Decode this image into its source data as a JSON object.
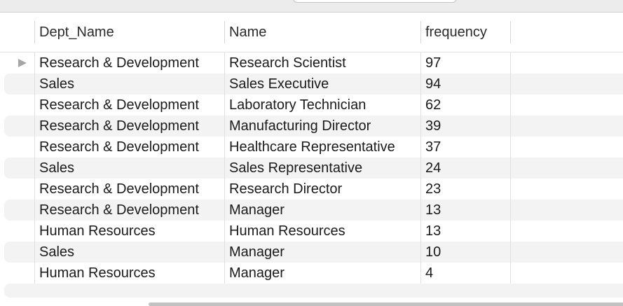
{
  "columns": {
    "dept": "Dept_Name",
    "name": "Name",
    "frequency": "frequency"
  },
  "rows": [
    {
      "dept": "Research & Development",
      "name": "Research Scientist",
      "frequency": "97"
    },
    {
      "dept": "Sales",
      "name": "Sales Executive",
      "frequency": "94"
    },
    {
      "dept": "Research & Development",
      "name": "Laboratory Technician",
      "frequency": "62"
    },
    {
      "dept": "Research & Development",
      "name": "Manufacturing Director",
      "frequency": "39"
    },
    {
      "dept": "Research & Development",
      "name": "Healthcare Representative",
      "frequency": "37"
    },
    {
      "dept": "Sales",
      "name": "Sales Representative",
      "frequency": "24"
    },
    {
      "dept": "Research & Development",
      "name": "Research Director",
      "frequency": "23"
    },
    {
      "dept": "Research & Development",
      "name": "Manager",
      "frequency": "13"
    },
    {
      "dept": "Human Resources",
      "name": "Human Resources",
      "frequency": "13"
    },
    {
      "dept": "Sales",
      "name": "Manager",
      "frequency": "10"
    },
    {
      "dept": "Human Resources",
      "name": "Manager",
      "frequency": "4"
    }
  ],
  "selected_row_indicator": "row-pointer-icon"
}
